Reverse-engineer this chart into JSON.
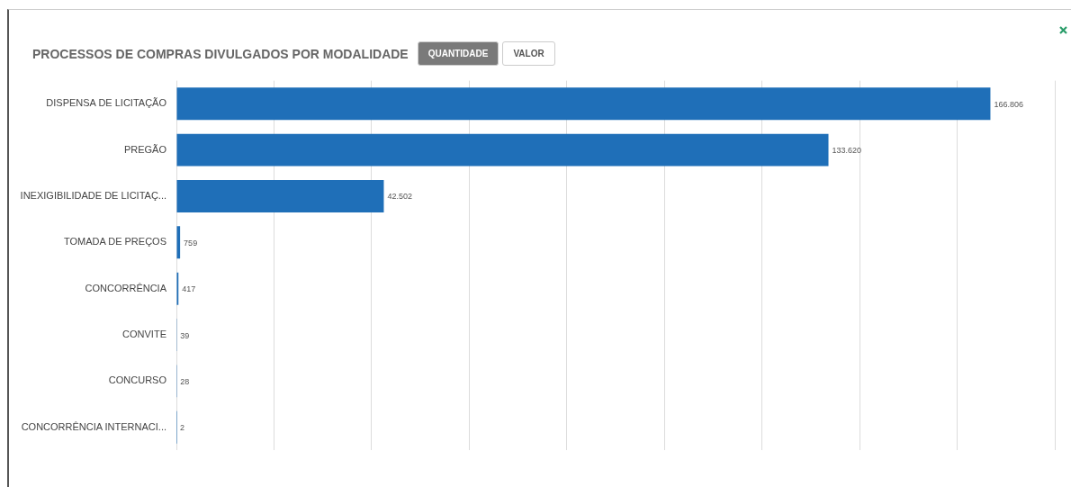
{
  "chart_data": {
    "type": "bar",
    "orientation": "horizontal",
    "title": "PROCESSOS DE COMPRAS DIVULGADOS POR MODALIDADE",
    "annotations": [
      "QUANTIDADE",
      "VALOR"
    ],
    "categories": [
      "DISPENSA DE LICITAÇÃO",
      "PREGÃO",
      "INEXIGIBILIDADE DE LICITAÇ...",
      "TOMADA DE PREÇOS",
      "CONCORRÊNCIA",
      "CONVITE",
      "CONCURSO",
      "CONCORRÊNCIA INTERNACI..."
    ],
    "values": [
      166806,
      133620,
      42502,
      759,
      417,
      39,
      28,
      2
    ],
    "value_labels": [
      "166.806",
      "133.620",
      "42.502",
      "759",
      "417",
      "39",
      "28",
      "2"
    ],
    "color": "#1f6fb8",
    "xlim": [
      0,
      180000
    ],
    "xticks": [
      {
        "value": 0,
        "label": null
      },
      {
        "value": 20000,
        "label": null
      },
      {
        "value": 40000,
        "label": null
      },
      {
        "value": 60000,
        "label": null
      },
      {
        "value": 80000,
        "label": null
      },
      {
        "value": 100000,
        "label": null
      },
      {
        "value": 120000,
        "label": null
      },
      {
        "value": 140000,
        "label": null
      },
      {
        "value": 160000,
        "label": null
      },
      {
        "value": 180000,
        "label": null
      }
    ],
    "grid": "x",
    "tick_labels": "y",
    "legend": false
  }
}
